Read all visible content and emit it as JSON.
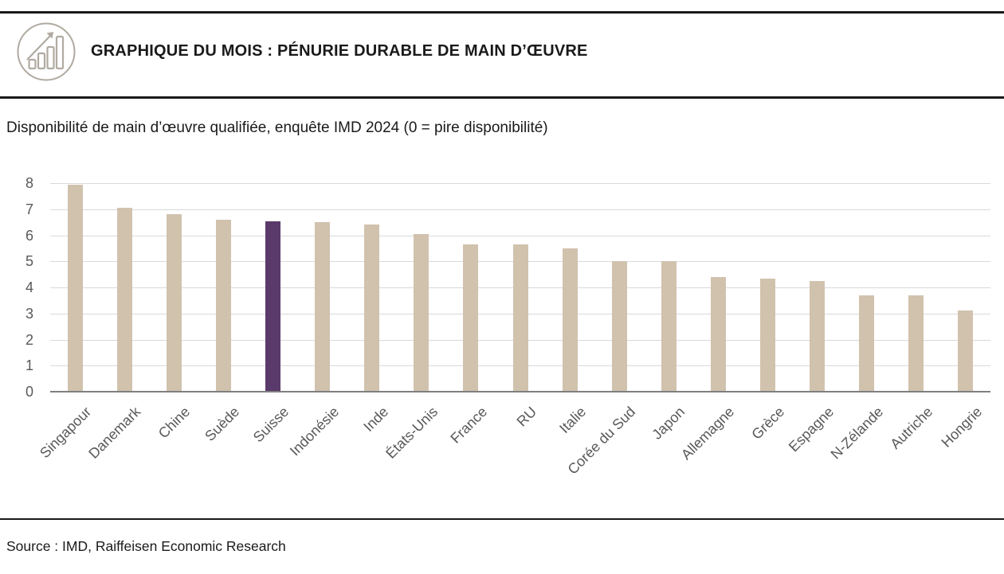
{
  "header": {
    "title": "GRAPHIQUE DU MOIS : PÉNURIE DURABLE DE MAIN D’ŒUVRE",
    "icon": "growth-chart-icon"
  },
  "subtitle": "Disponibilité de main d’œuvre qualifiée, enquête IMD 2024 (0 = pire disponibilité)",
  "source_line": "Source : IMD, Raiffeisen Economic Research",
  "colors": {
    "bar_default": "#d1c2ae",
    "bar_highlight": "#5a3a6b",
    "gridline": "#d9d9d9",
    "axis_baseline": "#7f7f7f",
    "axis_text": "#595959",
    "rule": "#1a1a1a",
    "icon_stroke": "#b0aaa1"
  },
  "chart_data": {
    "type": "bar",
    "title": "Disponibilité de main d’œuvre qualifiée, enquête IMD 2024 (0 = pire disponibilité)",
    "categories": [
      "Singapour",
      "Danemark",
      "Chine",
      "Suède",
      "Suisse",
      "Indonésie",
      "Inde",
      "États-Unis",
      "France",
      "RU",
      "Italie",
      "Corée du Sud",
      "Japon",
      "Allemagne",
      "Grèce",
      "Espagne",
      "N-Zélande",
      "Autriche",
      "Hongrie"
    ],
    "values": [
      7.95,
      7.05,
      6.8,
      6.6,
      6.55,
      6.5,
      6.4,
      6.05,
      5.65,
      5.65,
      5.5,
      5.0,
      5.0,
      4.4,
      4.35,
      4.25,
      3.7,
      3.7,
      3.1
    ],
    "highlight_category": "Suisse",
    "xlabel": "",
    "ylabel": "",
    "ylim": [
      0,
      8
    ],
    "yticks": [
      0,
      1,
      2,
      3,
      4,
      5,
      6,
      7,
      8
    ],
    "grid": true,
    "legend": false
  }
}
